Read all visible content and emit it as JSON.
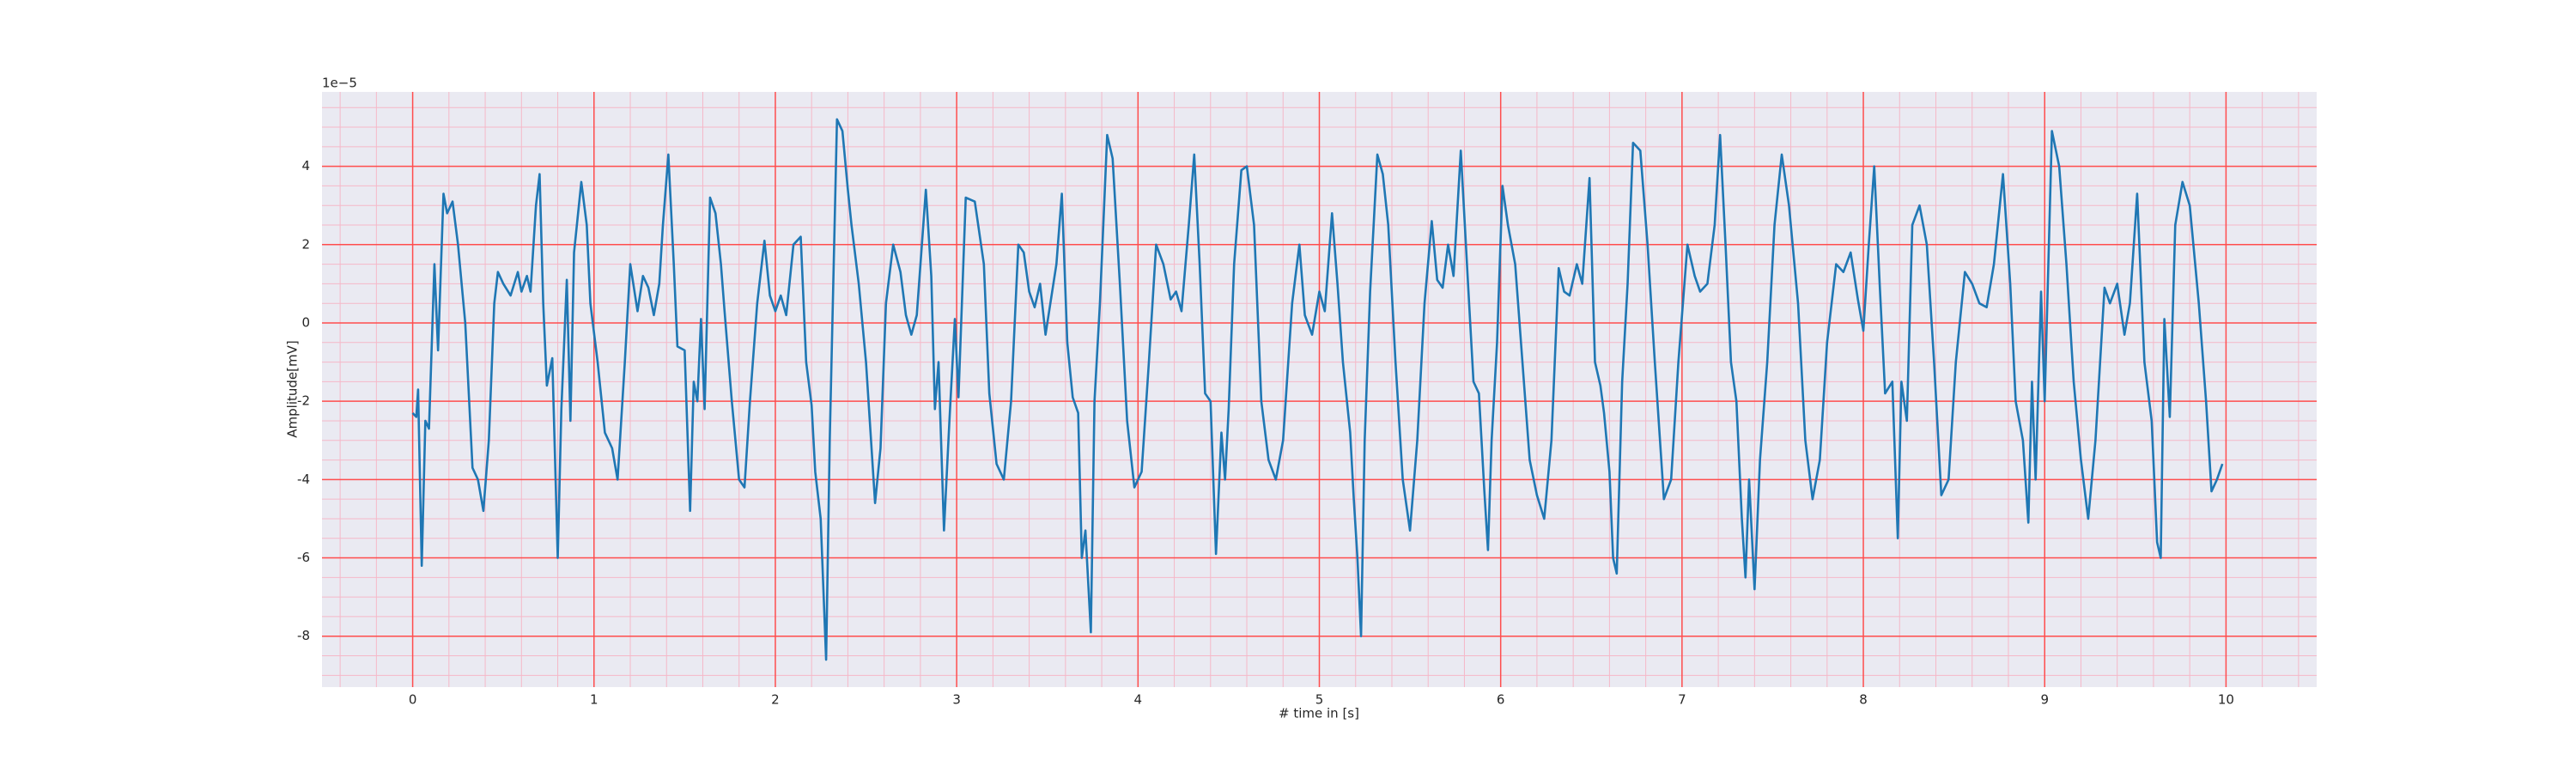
{
  "chart_data": {
    "type": "line",
    "xlabel": "# time in [s]",
    "ylabel": "Amplitude[mV]",
    "offset_text": "1e−5",
    "color": "#1f77b4",
    "grid": true,
    "grid_color": "#ff4d4d",
    "minor_grid_color": "#f5b8c8",
    "background": "#eaeaf2",
    "xlim": [
      -0.5,
      10.5
    ],
    "ylim": [
      -9.3,
      5.9
    ],
    "xticks": [
      0,
      1,
      2,
      3,
      4,
      5,
      6,
      7,
      8,
      9,
      10
    ],
    "yticks": [
      -8,
      -6,
      -4,
      -2,
      0,
      2,
      4
    ],
    "xminorticks": [
      -0.4,
      -0.2,
      0.2,
      0.4,
      0.6,
      0.8,
      1.2,
      1.4,
      1.6,
      1.8,
      2.2,
      2.4,
      2.6,
      2.8,
      3.2,
      3.4,
      3.6,
      3.8,
      4.2,
      4.4,
      4.6,
      4.8,
      5.2,
      5.4,
      5.6,
      5.8,
      6.2,
      6.4,
      6.6,
      6.8,
      7.2,
      7.4,
      7.6,
      7.8,
      8.2,
      8.4,
      8.6,
      8.8,
      9.2,
      9.4,
      9.6,
      9.8,
      10.2,
      10.4
    ],
    "yminorticks": [
      -9,
      -8.5,
      -7.5,
      -7,
      -6.5,
      -5.5,
      -5,
      -4.5,
      -3.5,
      -3,
      -2.5,
      -1.5,
      -1,
      -0.5,
      0.5,
      1,
      1.5,
      2.5,
      3,
      3.5,
      4.5,
      5,
      5.5
    ],
    "x": [
      0.0,
      0.02,
      0.03,
      0.05,
      0.07,
      0.09,
      0.12,
      0.14,
      0.17,
      0.19,
      0.22,
      0.25,
      0.29,
      0.33,
      0.36,
      0.39,
      0.42,
      0.45,
      0.47,
      0.5,
      0.54,
      0.58,
      0.6,
      0.63,
      0.65,
      0.68,
      0.7,
      0.72,
      0.74,
      0.77,
      0.8,
      0.82,
      0.85,
      0.87,
      0.89,
      0.93,
      0.96,
      0.98,
      1.02,
      1.06,
      1.1,
      1.13,
      1.17,
      1.2,
      1.24,
      1.27,
      1.3,
      1.33,
      1.36,
      1.38,
      1.41,
      1.44,
      1.46,
      1.5,
      1.53,
      1.55,
      1.57,
      1.59,
      1.61,
      1.64,
      1.67,
      1.7,
      1.72,
      1.76,
      1.8,
      1.83,
      1.86,
      1.9,
      1.94,
      1.97,
      2.0,
      2.03,
      2.06,
      2.1,
      2.14,
      2.17,
      2.2,
      2.22,
      2.25,
      2.28,
      2.3,
      2.34,
      2.37,
      2.4,
      2.42,
      2.46,
      2.5,
      2.55,
      2.58,
      2.61,
      2.65,
      2.69,
      2.72,
      2.75,
      2.78,
      2.83,
      2.86,
      2.88,
      2.9,
      2.93,
      2.96,
      2.99,
      3.01,
      3.05,
      3.1,
      3.15,
      3.18,
      3.22,
      3.26,
      3.3,
      3.34,
      3.37,
      3.4,
      3.43,
      3.46,
      3.49,
      3.55,
      3.58,
      3.61,
      3.64,
      3.67,
      3.69,
      3.71,
      3.74,
      3.76,
      3.79,
      3.83,
      3.86,
      3.9,
      3.94,
      3.98,
      4.02,
      4.06,
      4.1,
      4.14,
      4.18,
      4.21,
      4.24,
      4.28,
      4.31,
      4.34,
      4.37,
      4.4,
      4.43,
      4.46,
      4.48,
      4.5,
      4.53,
      4.57,
      4.6,
      4.64,
      4.68,
      4.72,
      4.76,
      4.8,
      4.85,
      4.89,
      4.92,
      4.96,
      5.0,
      5.03,
      5.07,
      5.1,
      5.13,
      5.17,
      5.19,
      5.21,
      5.23,
      5.25,
      5.28,
      5.32,
      5.35,
      5.38,
      5.42,
      5.46,
      5.5,
      5.54,
      5.58,
      5.62,
      5.65,
      5.68,
      5.71,
      5.74,
      5.78,
      5.82,
      5.85,
      5.88,
      5.91,
      5.93,
      5.95,
      5.98,
      6.01,
      6.04,
      6.08,
      6.12,
      6.16,
      6.2,
      6.24,
      6.28,
      6.32,
      6.35,
      6.38,
      6.42,
      6.45,
      6.49,
      6.52,
      6.55,
      6.57,
      6.6,
      6.62,
      6.64,
      6.67,
      6.7,
      6.73,
      6.77,
      6.81,
      6.85,
      6.9,
      6.94,
      6.98,
      7.03,
      7.07,
      7.1,
      7.14,
      7.18,
      7.21,
      7.24,
      7.27,
      7.3,
      7.33,
      7.35,
      7.37,
      7.4,
      7.43,
      7.47,
      7.51,
      7.55,
      7.59,
      7.64,
      7.68,
      7.72,
      7.76,
      7.8,
      7.85,
      7.89,
      7.93,
      7.97,
      8.0,
      8.03,
      8.06,
      8.09,
      8.12,
      8.16,
      8.19,
      8.21,
      8.24,
      8.27,
      8.31,
      8.35,
      8.39,
      8.43,
      8.47,
      8.51,
      8.56,
      8.6,
      8.64,
      8.68,
      8.72,
      8.77,
      8.81,
      8.84,
      8.88,
      8.91,
      8.93,
      8.95,
      8.98,
      9.0,
      9.04,
      9.08,
      9.12,
      9.16,
      9.2,
      9.24,
      9.28,
      9.33,
      9.36,
      9.4,
      9.44,
      9.47,
      9.51,
      9.55,
      9.59,
      9.62,
      9.64,
      9.66,
      9.69,
      9.72,
      9.76,
      9.8,
      9.85,
      9.89,
      9.92,
      9.95,
      9.98
    ],
    "values": [
      -2.3,
      -2.4,
      -1.7,
      -6.2,
      -2.5,
      -2.7,
      1.5,
      -0.7,
      3.3,
      2.8,
      3.1,
      2.0,
      0,
      -3.7,
      -4.0,
      -4.8,
      -3.0,
      0.5,
      1.3,
      1.0,
      0.7,
      1.3,
      0.8,
      1.2,
      0.8,
      3.0,
      3.8,
      0.5,
      -1.6,
      -0.9,
      -6.0,
      -2.2,
      1.1,
      -2.5,
      1.8,
      3.6,
      2.5,
      0.5,
      -1.0,
      -2.8,
      -3.2,
      -4.0,
      -1.0,
      1.5,
      0.3,
      1.2,
      0.9,
      0.2,
      1.0,
      2.5,
      4.3,
      1.5,
      -0.6,
      -0.7,
      -4.8,
      -1.5,
      -2.0,
      0.1,
      -2.2,
      3.2,
      2.8,
      1.5,
      0.3,
      -2.0,
      -4.0,
      -4.2,
      -2.0,
      0.5,
      2.1,
      0.7,
      0.3,
      0.7,
      0.2,
      2.0,
      2.2,
      -1.0,
      -2.1,
      -3.8,
      -5.0,
      -8.6,
      -3.0,
      5.2,
      4.9,
      3.4,
      2.5,
      1.0,
      -1.0,
      -4.6,
      -3.2,
      0.5,
      2.0,
      1.3,
      0.2,
      -0.3,
      0.2,
      3.4,
      1.2,
      -2.2,
      -1.0,
      -5.3,
      -2.5,
      0.1,
      -1.9,
      3.2,
      3.1,
      1.5,
      -1.8,
      -3.6,
      -4.0,
      -2.0,
      2.0,
      1.8,
      0.8,
      0.4,
      1.0,
      -0.3,
      1.5,
      3.3,
      -0.5,
      -1.9,
      -2.3,
      -6.0,
      -5.3,
      -7.9,
      -2.0,
      0.5,
      4.8,
      4.2,
      1.0,
      -2.5,
      -4.2,
      -3.8,
      -1.0,
      2.0,
      1.5,
      0.6,
      0.8,
      0.3,
      2.5,
      4.3,
      1.5,
      -1.8,
      -2.0,
      -5.9,
      -2.8,
      -4.0,
      -2.2,
      1.5,
      3.9,
      4.0,
      2.5,
      -2.0,
      -3.5,
      -4.0,
      -3.0,
      0.5,
      2.0,
      0.2,
      -0.3,
      0.8,
      0.3,
      2.8,
      1.0,
      -1.0,
      -2.8,
      -4.5,
      -6.0,
      -8.0,
      -3.0,
      0.8,
      4.3,
      3.8,
      2.5,
      -1.0,
      -4.0,
      -5.3,
      -3.0,
      0.5,
      2.6,
      1.1,
      0.9,
      2.0,
      1.2,
      4.4,
      1.0,
      -1.5,
      -1.8,
      -4.3,
      -5.8,
      -3.0,
      -0.5,
      3.5,
      2.5,
      1.5,
      -1.0,
      -3.5,
      -4.4,
      -5.0,
      -3.0,
      1.4,
      0.8,
      0.7,
      1.5,
      1.0,
      3.7,
      -1.0,
      -1.6,
      -2.3,
      -3.8,
      -6.0,
      -6.4,
      -1.5,
      1.0,
      4.6,
      4.4,
      2.0,
      -1.0,
      -4.5,
      -4.0,
      -1.0,
      2.0,
      1.2,
      0.8,
      1.0,
      2.5,
      4.8,
      2.0,
      -1.0,
      -2.0,
      -5.0,
      -6.5,
      -4.0,
      -6.8,
      -3.5,
      -1.0,
      2.5,
      4.3,
      3.0,
      0.5,
      -3.0,
      -4.5,
      -3.5,
      -0.5,
      1.5,
      1.3,
      1.8,
      0.6,
      -0.2,
      2.0,
      4.0,
      1.0,
      -1.8,
      -1.5,
      -5.5,
      -1.5,
      -2.5,
      2.5,
      3.0,
      2.0,
      -1.0,
      -4.4,
      -4.0,
      -1.0,
      1.3,
      1.0,
      0.5,
      0.4,
      1.5,
      3.8,
      1.0,
      -2.0,
      -3.0,
      -5.1,
      -1.5,
      -4.0,
      0.8,
      -2.0,
      4.9,
      4.0,
      1.5,
      -1.5,
      -3.5,
      -5.0,
      -3.0,
      0.9,
      0.5,
      1.0,
      -0.3,
      0.5,
      3.3,
      -1.0,
      -2.5,
      -5.6,
      -6.0,
      0.1,
      -2.4,
      2.5,
      3.6,
      3.0,
      0.5,
      -2.0,
      -4.3,
      -4.0,
      -3.6
    ]
  }
}
